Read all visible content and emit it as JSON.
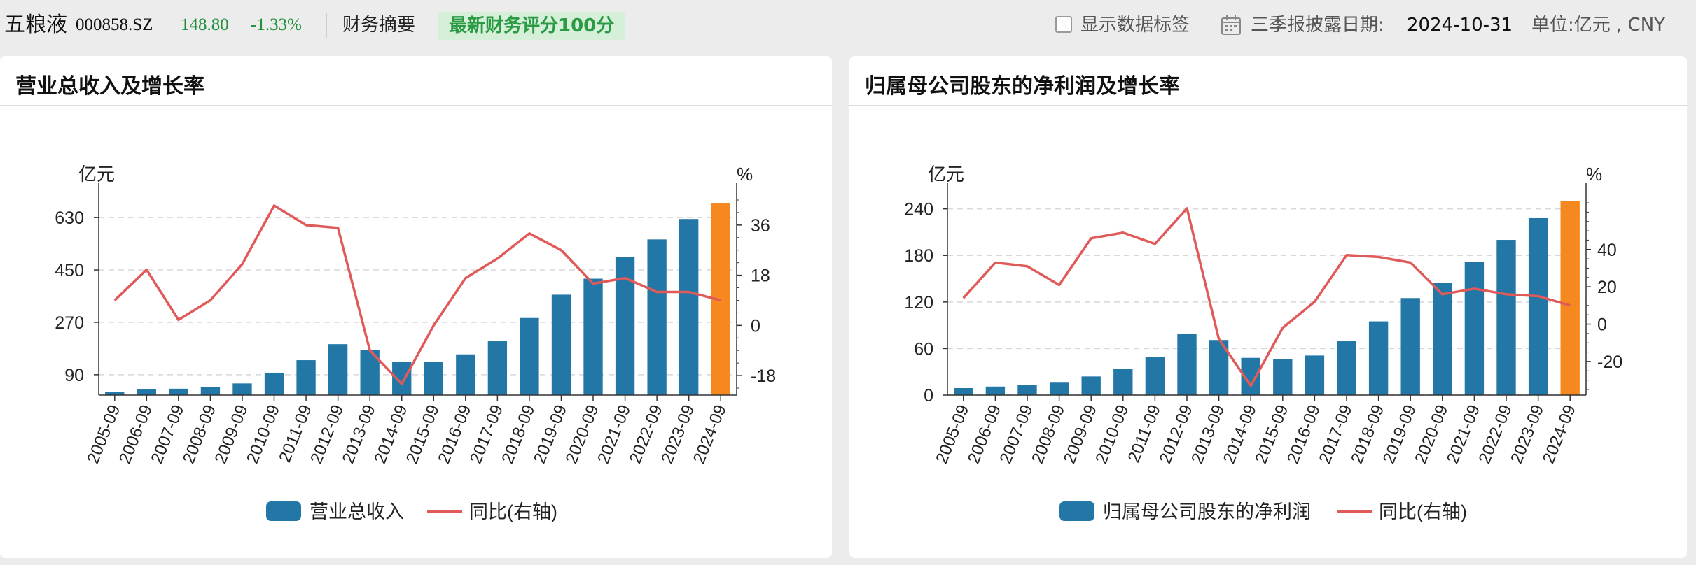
{
  "header": {
    "stock_name": "五粮液",
    "stock_code": "000858.SZ",
    "price": "148.80",
    "change": "-1.33%",
    "fin_summary": "财务摘要",
    "score_badge": "最新财务评分100分",
    "show_labels": "显示数据标签",
    "disclose_label": "三季报披露日期:",
    "disclose_date": "2024-10-31",
    "unit_label": "单位:亿元 , CNY",
    "colors": {
      "up_down_green": "#1f8f3a",
      "badge_bg": "#d5efd9",
      "badge_text": "#2a9a44"
    }
  },
  "chart_data": [
    {
      "type": "bar",
      "title": "营业总收入及增长率",
      "left_unit": "亿元",
      "right_unit": "%",
      "categories": [
        "2005-09",
        "2006-09",
        "2007-09",
        "2008-09",
        "2009-09",
        "2010-09",
        "2011-09",
        "2012-09",
        "2013-09",
        "2014-09",
        "2015-09",
        "2016-09",
        "2017-09",
        "2018-09",
        "2019-09",
        "2020-09",
        "2021-09",
        "2022-09",
        "2023-09",
        "2024-09"
      ],
      "series": [
        {
          "name": "营业总收入",
          "kind": "bar",
          "axis": "left",
          "color": "#2277a6",
          "values": [
            32,
            40,
            42,
            48,
            60,
            97,
            140,
            195,
            175,
            135,
            135,
            160,
            205,
            285,
            365,
            420,
            495,
            555,
            625,
            680
          ]
        },
        {
          "name": "同比(右轴)",
          "kind": "line",
          "axis": "right",
          "color": "#e05a5a",
          "values": [
            9,
            20,
            2,
            9,
            22,
            43,
            36,
            35,
            -9,
            -21,
            0,
            17,
            24,
            33,
            27,
            15,
            17,
            12,
            12,
            9
          ]
        }
      ],
      "highlight_last_color": "#f5891f",
      "left_axis": {
        "ticks": [
          90,
          270,
          450,
          630
        ],
        "range": [
          20,
          700
        ]
      },
      "right_axis": {
        "ticks": [
          -18,
          0,
          18,
          36
        ],
        "range": [
          -25,
          46
        ]
      },
      "legend_position": "bottom",
      "grid": true
    },
    {
      "type": "bar",
      "title": "归属母公司股东的净利润及增长率",
      "left_unit": "亿元",
      "right_unit": "%",
      "categories": [
        "2005-09",
        "2006-09",
        "2007-09",
        "2008-09",
        "2009-09",
        "2010-09",
        "2011-09",
        "2012-09",
        "2013-09",
        "2014-09",
        "2015-09",
        "2016-09",
        "2017-09",
        "2018-09",
        "2019-09",
        "2020-09",
        "2021-09",
        "2022-09",
        "2023-09",
        "2024-09"
      ],
      "series": [
        {
          "name": "归属母公司股东的净利润",
          "kind": "bar",
          "axis": "left",
          "color": "#2277a6",
          "values": [
            9,
            11,
            13,
            16,
            24,
            34,
            49,
            79,
            71,
            48,
            46,
            51,
            70,
            95,
            125,
            145,
            172,
            200,
            228,
            250
          ]
        },
        {
          "name": "同比(右轴)",
          "kind": "line",
          "axis": "right",
          "color": "#e05a5a",
          "values": [
            14,
            33,
            31,
            21,
            46,
            49,
            43,
            62,
            -8,
            -33,
            -2,
            12,
            37,
            36,
            33,
            16,
            19,
            16,
            15,
            10
          ]
        }
      ],
      "highlight_last_color": "#f5891f",
      "left_axis": {
        "ticks": [
          0,
          60,
          120,
          180,
          240
        ],
        "range": [
          0,
          255
        ]
      },
      "right_axis": {
        "ticks": [
          -20,
          0,
          20,
          40
        ],
        "range": [
          -38,
          68
        ]
      },
      "legend_position": "bottom",
      "grid": true
    }
  ]
}
